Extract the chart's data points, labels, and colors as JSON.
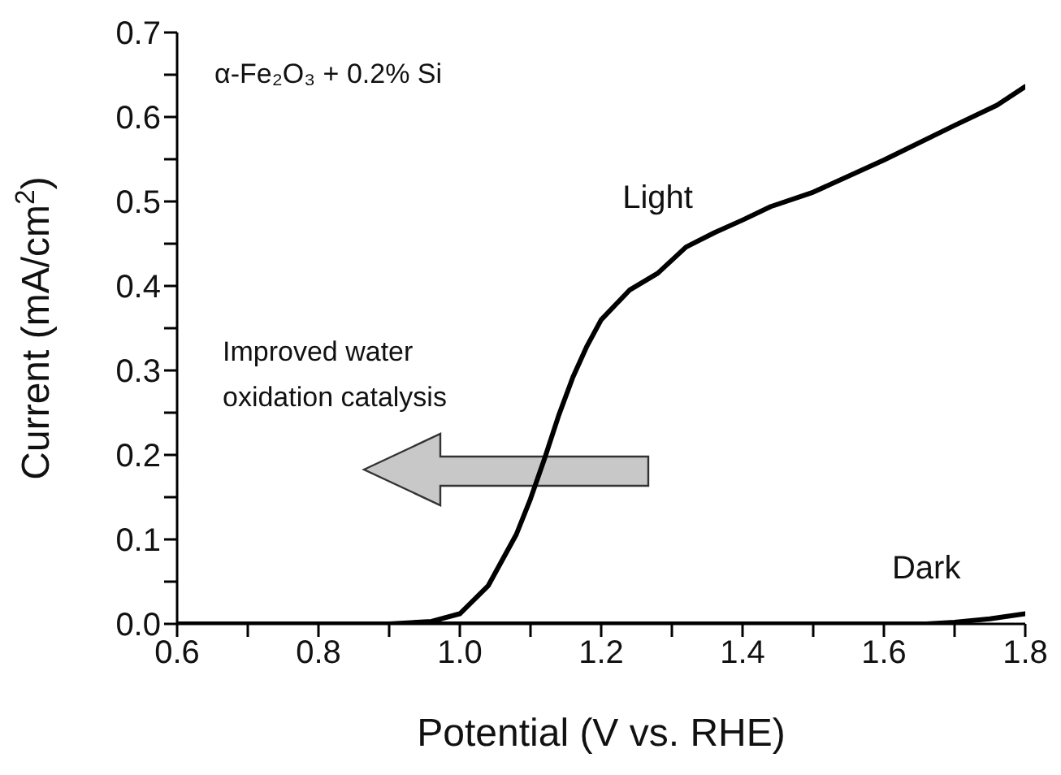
{
  "chart_data": {
    "type": "line",
    "xlabel": "Potential (V vs. RHE)",
    "ylabel": "Current (mA/cm$^{2}$)",
    "xlim": [
      0.6,
      1.8
    ],
    "xticks": [
      0.6,
      {
        "value": 0.7,
        "label": null
      },
      0.8,
      {
        "value": 0.9,
        "label": null
      },
      {
        "value": 1,
        "label": "1.0"
      },
      {
        "value": 1.1,
        "label": null
      },
      1.2,
      {
        "value": 1.3,
        "label": null
      },
      1.4,
      {
        "value": 1.5,
        "label": null
      },
      1.6,
      {
        "value": 1.7,
        "label": null
      },
      1.8
    ],
    "ylim": [
      0,
      0.7
    ],
    "yticks": [
      {
        "value": 0,
        "label": "0.0"
      },
      {
        "value": 0.05,
        "label": null
      },
      0.1,
      {
        "value": 0.15,
        "label": null
      },
      0.2,
      {
        "value": 0.25,
        "label": null
      },
      0.3,
      {
        "value": 0.35,
        "label": null
      },
      0.4,
      {
        "value": 0.45,
        "label": null
      },
      0.5,
      {
        "value": 0.55,
        "label": null
      },
      0.6,
      {
        "value": 0.65,
        "label": null
      },
      0.7
    ],
    "grid": false,
    "legend": false,
    "marker": "none",
    "line_style": "solid",
    "series": [
      {
        "name": "Light",
        "color": "#000000",
        "x": [
          0.6,
          0.9,
          0.96,
          1.0,
          1.04,
          1.08,
          1.1,
          1.12,
          1.14,
          1.16,
          1.18,
          1.2,
          1.24,
          1.28,
          1.32,
          1.36,
          1.4,
          1.44,
          1.5,
          1.6,
          1.7,
          1.76,
          1.8
        ],
        "values": [
          0.0,
          0.0,
          0.003,
          0.012,
          0.045,
          0.106,
          0.148,
          0.196,
          0.247,
          0.292,
          0.329,
          0.36,
          0.395,
          0.415,
          0.446,
          0.463,
          0.478,
          0.494,
          0.511,
          0.549,
          0.59,
          0.614,
          0.636
        ]
      },
      {
        "name": "Dark",
        "color": "#000000",
        "x": [
          0.6,
          1.0,
          1.4,
          1.6,
          1.66,
          1.7,
          1.75,
          1.8
        ],
        "values": [
          0.0,
          0.0,
          0.0,
          0.0,
          0.0,
          0.002,
          0.006,
          0.012
        ]
      }
    ],
    "annotations": [
      "α-Fe₂O₃ + 0.2% Si",
      "Improved water oxidation catalysis"
    ]
  }
}
